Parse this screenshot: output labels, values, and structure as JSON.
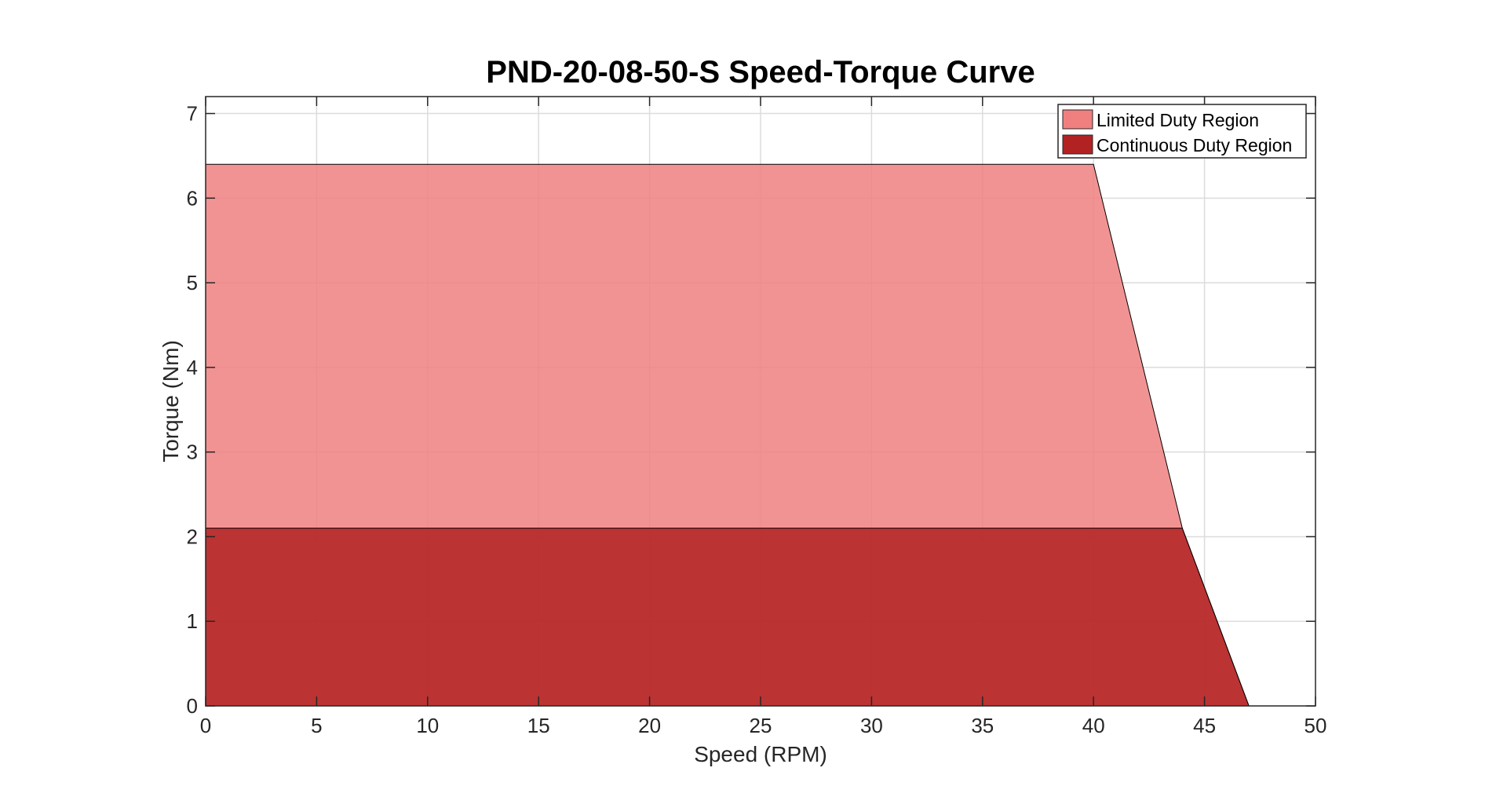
{
  "chart_data": {
    "type": "area",
    "title": "PND-20-08-50-S Speed-Torque Curve",
    "xlabel": "Speed (RPM)",
    "ylabel": "Torque (Nm)",
    "xlim": [
      0,
      50
    ],
    "ylim": [
      0,
      7.2
    ],
    "xticks": [
      0,
      5,
      10,
      15,
      20,
      25,
      30,
      35,
      40,
      45,
      50
    ],
    "yticks": [
      0,
      1,
      2,
      3,
      4,
      5,
      6,
      7
    ],
    "grid": true,
    "legend_position": "top-right",
    "series": [
      {
        "name": "Limited Duty Region",
        "color": "#F08080",
        "points": [
          [
            0,
            0
          ],
          [
            0,
            6.4
          ],
          [
            40,
            6.4
          ],
          [
            44,
            2.1
          ],
          [
            47,
            0
          ]
        ]
      },
      {
        "name": "Continuous Duty Region",
        "color": "#B22222",
        "points": [
          [
            0,
            0
          ],
          [
            0,
            2.1
          ],
          [
            44,
            2.1
          ],
          [
            47,
            0
          ]
        ]
      }
    ]
  }
}
